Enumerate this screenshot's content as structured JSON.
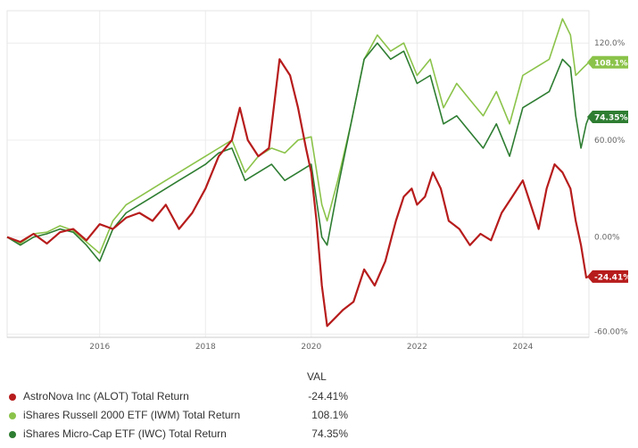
{
  "chart_data": {
    "type": "line",
    "x_start": 2014.25,
    "x_end": 2025.25,
    "ylim": [
      -62,
      140
    ],
    "grid": true,
    "x_tick_labels": [
      {
        "x": 2016,
        "label": "2016"
      },
      {
        "x": 2018,
        "label": "2018"
      },
      {
        "x": 2020,
        "label": "2020"
      },
      {
        "x": 2022,
        "label": "2022"
      },
      {
        "x": 2024,
        "label": "2024"
      }
    ],
    "y_tick_labels": [
      {
        "y": 120,
        "label": "120.0%"
      },
      {
        "y": 60,
        "label": "60.00%"
      },
      {
        "y": 0,
        "label": "0.00%"
      },
      {
        "y": -60,
        "label": "-60.00%"
      }
    ],
    "legend_header": "VAL",
    "series": [
      {
        "name": "AstroNova Inc (ALOT) Total Return",
        "color": "#b71c1c",
        "last_label": "-24.41%",
        "last_value": -24.41,
        "points": [
          [
            2014.25,
            0
          ],
          [
            2014.5,
            -3
          ],
          [
            2014.75,
            2
          ],
          [
            2015.0,
            -4
          ],
          [
            2015.25,
            3
          ],
          [
            2015.5,
            5
          ],
          [
            2015.75,
            -2
          ],
          [
            2016.0,
            8
          ],
          [
            2016.25,
            5
          ],
          [
            2016.5,
            12
          ],
          [
            2016.75,
            15
          ],
          [
            2017.0,
            10
          ],
          [
            2017.25,
            20
          ],
          [
            2017.5,
            5
          ],
          [
            2017.75,
            15
          ],
          [
            2018.0,
            30
          ],
          [
            2018.25,
            50
          ],
          [
            2018.5,
            60
          ],
          [
            2018.65,
            80
          ],
          [
            2018.8,
            60
          ],
          [
            2019.0,
            50
          ],
          [
            2019.2,
            55
          ],
          [
            2019.4,
            110
          ],
          [
            2019.6,
            100
          ],
          [
            2019.75,
            80
          ],
          [
            2019.9,
            55
          ],
          [
            2020.0,
            40
          ],
          [
            2020.1,
            10
          ],
          [
            2020.2,
            -30
          ],
          [
            2020.3,
            -55
          ],
          [
            2020.45,
            -50
          ],
          [
            2020.6,
            -45
          ],
          [
            2020.8,
            -40
          ],
          [
            2021.0,
            -20
          ],
          [
            2021.2,
            -30
          ],
          [
            2021.4,
            -15
          ],
          [
            2021.6,
            10
          ],
          [
            2021.75,
            25
          ],
          [
            2021.9,
            30
          ],
          [
            2022.0,
            20
          ],
          [
            2022.15,
            25
          ],
          [
            2022.3,
            40
          ],
          [
            2022.45,
            30
          ],
          [
            2022.6,
            10
          ],
          [
            2022.8,
            5
          ],
          [
            2023.0,
            -5
          ],
          [
            2023.2,
            2
          ],
          [
            2023.4,
            -2
          ],
          [
            2023.6,
            15
          ],
          [
            2023.8,
            25
          ],
          [
            2024.0,
            35
          ],
          [
            2024.15,
            20
          ],
          [
            2024.3,
            5
          ],
          [
            2024.45,
            30
          ],
          [
            2024.6,
            45
          ],
          [
            2024.75,
            40
          ],
          [
            2024.9,
            30
          ],
          [
            2025.0,
            10
          ],
          [
            2025.1,
            -5
          ],
          [
            2025.2,
            -25
          ],
          [
            2025.25,
            -24.41
          ]
        ]
      },
      {
        "name": "iShares Russell 2000 ETF (IWM) Total Return",
        "color": "#8bc34a",
        "last_label": "108.1%",
        "last_value": 108.1,
        "points": [
          [
            2014.25,
            0
          ],
          [
            2014.5,
            -4
          ],
          [
            2014.75,
            2
          ],
          [
            2015.0,
            3
          ],
          [
            2015.25,
            7
          ],
          [
            2015.5,
            4
          ],
          [
            2015.75,
            -3
          ],
          [
            2016.0,
            -10
          ],
          [
            2016.25,
            10
          ],
          [
            2016.5,
            20
          ],
          [
            2016.75,
            25
          ],
          [
            2017.0,
            30
          ],
          [
            2017.25,
            35
          ],
          [
            2017.5,
            40
          ],
          [
            2017.75,
            45
          ],
          [
            2018.0,
            50
          ],
          [
            2018.25,
            55
          ],
          [
            2018.5,
            60
          ],
          [
            2018.75,
            40
          ],
          [
            2019.0,
            50
          ],
          [
            2019.25,
            55
          ],
          [
            2019.5,
            52
          ],
          [
            2019.75,
            60
          ],
          [
            2020.0,
            62
          ],
          [
            2020.2,
            20
          ],
          [
            2020.3,
            10
          ],
          [
            2020.5,
            35
          ],
          [
            2020.75,
            70
          ],
          [
            2021.0,
            110
          ],
          [
            2021.25,
            125
          ],
          [
            2021.5,
            115
          ],
          [
            2021.75,
            120
          ],
          [
            2022.0,
            100
          ],
          [
            2022.25,
            110
          ],
          [
            2022.5,
            80
          ],
          [
            2022.75,
            95
          ],
          [
            2023.0,
            85
          ],
          [
            2023.25,
            75
          ],
          [
            2023.5,
            90
          ],
          [
            2023.75,
            70
          ],
          [
            2024.0,
            100
          ],
          [
            2024.25,
            105
          ],
          [
            2024.5,
            110
          ],
          [
            2024.75,
            135
          ],
          [
            2024.9,
            125
          ],
          [
            2025.0,
            100
          ],
          [
            2025.15,
            105
          ],
          [
            2025.25,
            108.1
          ]
        ]
      },
      {
        "name": "iShares Micro-Cap ETF (IWC) Total Return",
        "color": "#2e7d32",
        "last_label": "74.35%",
        "last_value": 74.35,
        "points": [
          [
            2014.25,
            0
          ],
          [
            2014.5,
            -5
          ],
          [
            2014.75,
            0
          ],
          [
            2015.0,
            2
          ],
          [
            2015.25,
            5
          ],
          [
            2015.5,
            3
          ],
          [
            2015.75,
            -5
          ],
          [
            2016.0,
            -15
          ],
          [
            2016.25,
            5
          ],
          [
            2016.5,
            15
          ],
          [
            2016.75,
            20
          ],
          [
            2017.0,
            25
          ],
          [
            2017.25,
            30
          ],
          [
            2017.5,
            35
          ],
          [
            2017.75,
            40
          ],
          [
            2018.0,
            45
          ],
          [
            2018.25,
            52
          ],
          [
            2018.5,
            55
          ],
          [
            2018.75,
            35
          ],
          [
            2019.0,
            40
          ],
          [
            2019.25,
            45
          ],
          [
            2019.5,
            35
          ],
          [
            2019.75,
            40
          ],
          [
            2020.0,
            45
          ],
          [
            2020.2,
            0
          ],
          [
            2020.3,
            -5
          ],
          [
            2020.5,
            30
          ],
          [
            2020.75,
            70
          ],
          [
            2021.0,
            110
          ],
          [
            2021.25,
            120
          ],
          [
            2021.5,
            110
          ],
          [
            2021.75,
            115
          ],
          [
            2022.0,
            95
          ],
          [
            2022.25,
            100
          ],
          [
            2022.5,
            70
          ],
          [
            2022.75,
            75
          ],
          [
            2023.0,
            65
          ],
          [
            2023.25,
            55
          ],
          [
            2023.5,
            70
          ],
          [
            2023.75,
            50
          ],
          [
            2024.0,
            80
          ],
          [
            2024.25,
            85
          ],
          [
            2024.5,
            90
          ],
          [
            2024.75,
            110
          ],
          [
            2024.9,
            105
          ],
          [
            2025.0,
            75
          ],
          [
            2025.1,
            55
          ],
          [
            2025.2,
            70
          ],
          [
            2025.25,
            74.35
          ]
        ]
      }
    ]
  }
}
